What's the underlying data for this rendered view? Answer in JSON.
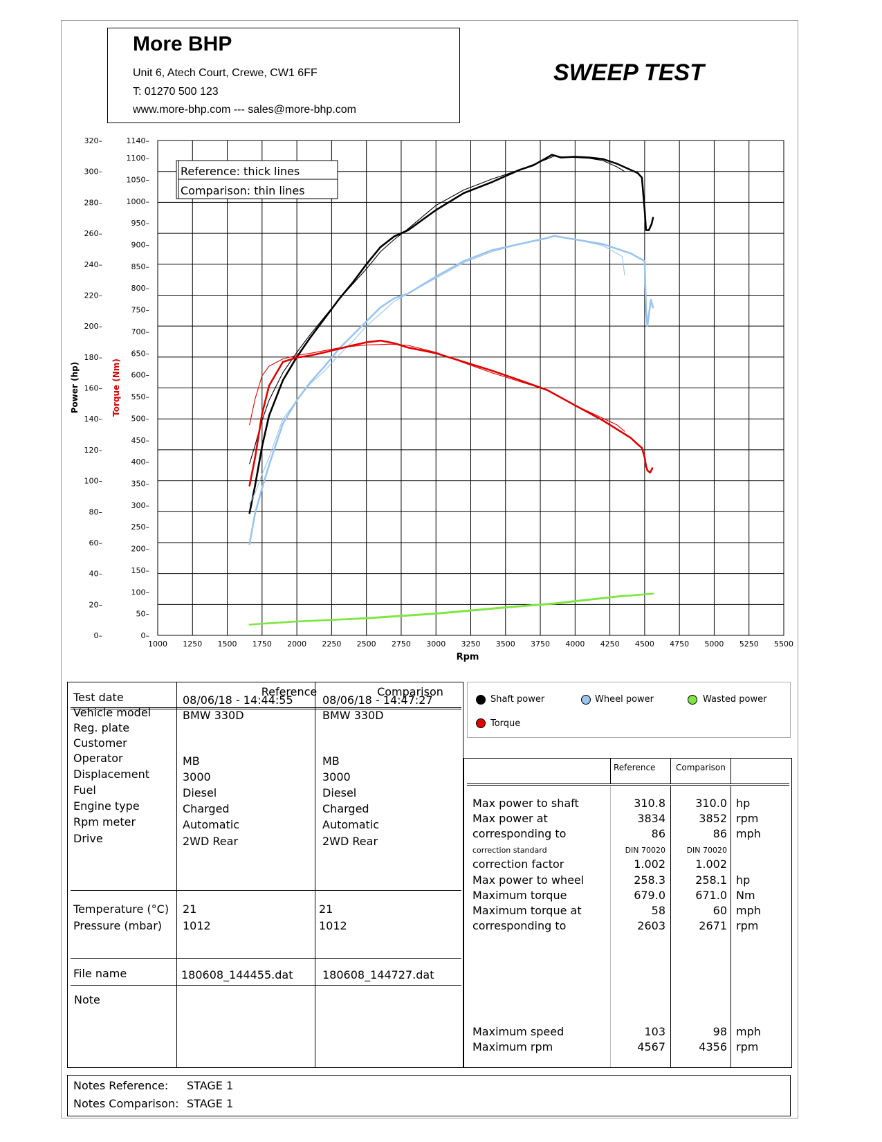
{
  "header": {
    "company_name": "More BHP",
    "address": "Unit 6, Atech Court, Crewe, CW1 6FF",
    "phone": "T: 01270 500 123",
    "web": "www.more-bhp.com --- sales@more-bhp.com",
    "title": "SWEEP TEST"
  },
  "colors": {
    "shaft": "#000000",
    "wheel": "#99c4ee",
    "torque": "#e00000",
    "wasted": "#7de640"
  },
  "chart_data": {
    "type": "line",
    "xlabel": "Rpm",
    "ylabel_power": "Power (hp)",
    "ylabel_torque": "Torque (Nm)",
    "x_ticks": [
      "1000",
      "1250",
      "1500",
      "1750",
      "2000",
      "2250",
      "2500",
      "2750",
      "3000",
      "3250",
      "3500",
      "3750",
      "4000",
      "4250",
      "4500",
      "4750",
      "5000",
      "5250",
      "5500"
    ],
    "power_ticks": [
      "0",
      "20",
      "40",
      "60",
      "80",
      "100",
      "120",
      "140",
      "160",
      "180",
      "200",
      "220",
      "240",
      "260",
      "280",
      "300",
      "320"
    ],
    "torque_ticks": [
      "0",
      "50",
      "100",
      "150",
      "200",
      "250",
      "300",
      "350",
      "400",
      "450",
      "500",
      "550",
      "600",
      "650",
      "700",
      "750",
      "800",
      "850",
      "900",
      "950",
      "1000",
      "1050",
      "1100",
      "1140"
    ],
    "xlim": [
      1000,
      5500
    ],
    "power_ylim": [
      0,
      320
    ],
    "torque_ylim": [
      0,
      1140
    ],
    "legend_note": {
      "reference": "Reference: thick lines",
      "comparison": "Comparison: thin lines"
    },
    "series": [
      {
        "name": "Shaft power",
        "axis": "power",
        "role": "reference",
        "color": "#000000",
        "x": [
          1660,
          1700,
          1750,
          1800,
          1900,
          2000,
          2100,
          2200,
          2300,
          2400,
          2500,
          2600,
          2700,
          2800,
          3000,
          3200,
          3400,
          3600,
          3700,
          3800,
          3834,
          3900,
          4000,
          4100,
          4200,
          4300,
          4400,
          4450,
          4480,
          4500,
          4510,
          4530,
          4550,
          4560
        ],
        "y": [
          79,
          97,
          122,
          142,
          165,
          180,
          193,
          205,
          217,
          228,
          240,
          251,
          258,
          262,
          275,
          286,
          293,
          301,
          304,
          309,
          310.8,
          309,
          309.5,
          309,
          308,
          305,
          301,
          299,
          296,
          275,
          262,
          262,
          266,
          270
        ]
      },
      {
        "name": "Shaft power",
        "axis": "power",
        "role": "comparison",
        "color": "#000000",
        "x": [
          1660,
          1700,
          1750,
          1800,
          1900,
          2000,
          2100,
          2200,
          2300,
          2400,
          2500,
          2600,
          2700,
          2800,
          3000,
          3200,
          3400,
          3600,
          3800,
          3852,
          3900,
          4000,
          4100,
          4200,
          4300,
          4356
        ],
        "y": [
          111,
          123,
          139,
          152,
          170,
          183,
          195,
          206,
          217,
          227,
          237,
          248,
          256,
          263,
          278,
          288,
          295,
          301,
          308,
          310,
          309.5,
          309,
          308.5,
          307,
          303,
          300
        ]
      },
      {
        "name": "Wheel power",
        "axis": "power",
        "role": "reference",
        "color": "#99c4ee",
        "x": [
          1660,
          1700,
          1750,
          1800,
          1900,
          2000,
          2100,
          2200,
          2300,
          2400,
          2500,
          2600,
          2700,
          2800,
          3000,
          3200,
          3400,
          3600,
          3800,
          3850,
          4000,
          4200,
          4400,
          4500,
          4510,
          4520,
          4530,
          4545,
          4560
        ],
        "y": [
          59,
          79,
          95,
          110,
          137,
          152,
          164,
          174,
          185,
          194,
          203,
          212,
          218,
          221,
          232,
          242,
          249,
          253,
          257,
          258.3,
          256,
          253,
          247,
          242,
          210,
          200,
          207,
          217,
          212
        ]
      },
      {
        "name": "Wheel power",
        "axis": "power",
        "role": "comparison",
        "color": "#99c4ee",
        "x": [
          1660,
          1700,
          1750,
          1800,
          1900,
          2000,
          2100,
          2200,
          2300,
          2400,
          2500,
          2600,
          2700,
          2800,
          3000,
          3200,
          3400,
          3600,
          3800,
          3852,
          4000,
          4200,
          4340,
          4356
        ],
        "y": [
          85,
          92,
          104,
          115,
          140,
          152,
          163,
          171,
          181,
          190,
          200,
          208,
          216,
          221,
          231,
          241,
          248,
          253,
          257,
          258,
          256,
          252,
          245,
          233
        ]
      },
      {
        "name": "Torque",
        "axis": "torque",
        "role": "reference",
        "color": "#e00000",
        "x": [
          1660,
          1700,
          1750,
          1800,
          1900,
          2000,
          2100,
          2200,
          2300,
          2400,
          2500,
          2603,
          2700,
          2800,
          3000,
          3200,
          3400,
          3600,
          3800,
          4000,
          4200,
          4300,
          4400,
          4450,
          4480,
          4500,
          4510,
          4520,
          4540,
          4555
        ],
        "y": [
          345,
          410,
          510,
          575,
          630,
          640,
          645,
          652,
          660,
          668,
          675,
          679,
          673,
          663,
          650,
          630,
          610,
          588,
          565,
          530,
          495,
          475,
          455,
          440,
          432,
          410,
          390,
          380,
          375,
          385
        ]
      },
      {
        "name": "Torque",
        "axis": "torque",
        "role": "comparison",
        "color": "#e00000",
        "x": [
          1660,
          1700,
          1750,
          1800,
          1900,
          2000,
          2100,
          2200,
          2300,
          2400,
          2500,
          2600,
          2671,
          2800,
          3000,
          3200,
          3400,
          3600,
          3800,
          4000,
          4200,
          4300,
          4356
        ],
        "y": [
          485,
          545,
          598,
          620,
          637,
          645,
          650,
          656,
          662,
          666,
          669,
          670,
          671,
          668,
          652,
          628,
          605,
          585,
          565,
          530,
          500,
          485,
          470
        ]
      },
      {
        "name": "Wasted power",
        "axis": "power",
        "role": "reference",
        "color": "#7de640",
        "x": [
          1660,
          2000,
          2500,
          3000,
          3500,
          3850,
          4000,
          4300,
          4560
        ],
        "y": [
          7,
          9,
          11,
          14,
          18,
          20.5,
          22,
          25,
          27
        ]
      },
      {
        "name": "Wasted power",
        "axis": "power",
        "role": "comparison",
        "color": "#7de640",
        "x": [
          1660,
          2000,
          2500,
          3000,
          3500,
          3852,
          4000,
          4356
        ],
        "y": [
          7,
          9,
          11.5,
          14.5,
          18.5,
          21,
          22.5,
          26
        ]
      }
    ]
  },
  "vehicle_table": {
    "col_ref": "Reference",
    "col_cmp": "Comparison",
    "labels": [
      "Test date",
      "Vehicle model",
      "Reg. plate",
      "Customer",
      "Operator",
      "Displacement",
      "Fuel",
      "Engine type",
      "Rpm meter",
      "Drive"
    ],
    "ref_values": [
      "08/06/18 - 14:44:55",
      "BMW 330D",
      "",
      "",
      "MB",
      "3000",
      "Diesel",
      "Charged",
      "Automatic",
      "2WD Rear"
    ],
    "cmp_values": [
      "08/06/18 - 14:47:27",
      "BMW 330D",
      "",
      "",
      "MB",
      "3000",
      "Diesel",
      "Charged",
      "Automatic",
      "2WD Rear"
    ],
    "env_labels": [
      "Temperature (°C)",
      "Pressure (mbar)"
    ],
    "env_ref": [
      "21",
      "1012"
    ],
    "env_cmp": [
      "21",
      "1012"
    ],
    "file_label": "File name",
    "file_ref": "180608_144455.dat",
    "file_cmp": "180608_144727.dat",
    "note_label": "Note"
  },
  "legend": {
    "shaft": "Shaft power",
    "wheel": "Wheel power",
    "wasted": "Wasted power",
    "torque": "Torque"
  },
  "results": {
    "col_ref": "Reference",
    "col_cmp": "Comparison",
    "rows": [
      {
        "label": "Max power to shaft",
        "ref": "310.8",
        "cmp": "310.0",
        "unit": "hp"
      },
      {
        "label": "Max power at",
        "ref": "3834",
        "cmp": "3852",
        "unit": "rpm"
      },
      {
        "label": "corresponding to",
        "ref": "86",
        "cmp": "86",
        "unit": "mph"
      },
      {
        "label": "correction standard",
        "ref": "DIN 70020",
        "cmp": "DIN 70020",
        "unit": ""
      },
      {
        "label": "correction factor",
        "ref": "1.002",
        "cmp": "1.002",
        "unit": ""
      },
      {
        "label": "Max power to wheel",
        "ref": "258.3",
        "cmp": "258.1",
        "unit": "hp"
      },
      {
        "label": "Maximum torque",
        "ref": "679.0",
        "cmp": "671.0",
        "unit": "Nm"
      },
      {
        "label": "Maximum torque at",
        "ref": "58",
        "cmp": "60",
        "unit": "mph"
      },
      {
        "label": "corresponding to",
        "ref": "2603",
        "cmp": "2671",
        "unit": "rpm"
      }
    ],
    "speed_rows": [
      {
        "label": "Maximum speed",
        "ref": "103",
        "cmp": "98",
        "unit": "mph"
      },
      {
        "label": "Maximum rpm",
        "ref": "4567",
        "cmp": "4356",
        "unit": "rpm"
      }
    ]
  },
  "notes": {
    "ref_label": "Notes Reference:",
    "ref_value": "STAGE 1",
    "cmp_label": "Notes Comparison:",
    "cmp_value": "STAGE 1"
  }
}
